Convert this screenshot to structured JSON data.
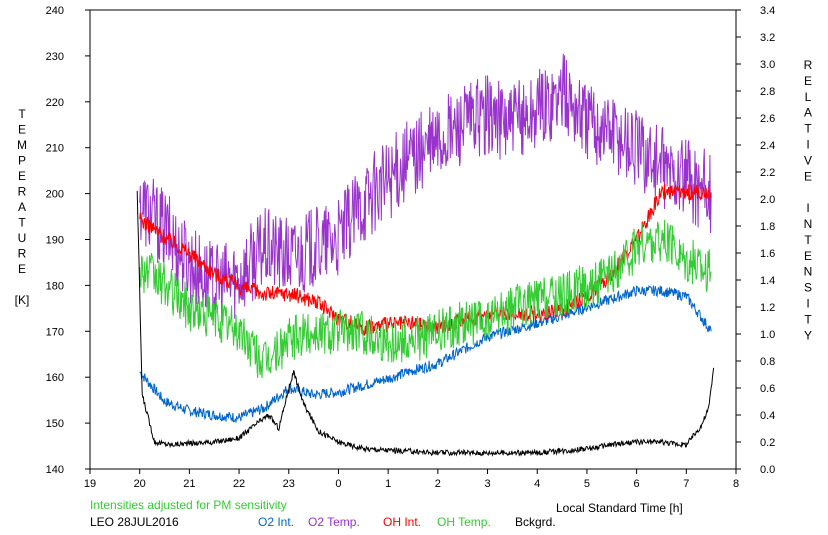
{
  "chart_data": {
    "type": "line",
    "xlabel": "Local Standard Time [h]",
    "ylabel_left": [
      "T",
      "E",
      "M",
      "P",
      "E",
      "R",
      "A",
      "T",
      "U",
      "R",
      "E",
      "",
      "[K]"
    ],
    "ylabel_right": [
      "R",
      "E",
      "L",
      "A",
      "T",
      "I",
      "V",
      "E",
      "",
      "I",
      "N",
      "T",
      "E",
      "N",
      "S",
      "I",
      "T",
      "Y"
    ],
    "x_tick_labels": [
      "19",
      "20",
      "21",
      "22",
      "23",
      "0",
      "1",
      "2",
      "3",
      "4",
      "5",
      "6",
      "7",
      "8"
    ],
    "y_left_ticks": [
      140,
      150,
      160,
      170,
      180,
      190,
      200,
      210,
      220,
      230,
      240
    ],
    "y_right_ticks": [
      "0.0",
      "0.2",
      "0.4",
      "0.6",
      "0.8",
      "1.0",
      "1.2",
      "1.4",
      "1.6",
      "1.8",
      "2.0",
      "2.2",
      "2.4",
      "2.6",
      "2.8",
      "3.0",
      "3.2",
      "3.4"
    ],
    "xlim": [
      19,
      32
    ],
    "ylim_left": [
      140,
      240
    ],
    "ylim_right": [
      0,
      3.4
    ],
    "note": "Intensities adjusted for PM sensitivity",
    "station": "LEO 28JUL2016",
    "series": [
      {
        "name": "O2 Int.",
        "axis": "right",
        "color": "#0066cc",
        "x": [
          20.0,
          20.5,
          21.0,
          21.5,
          22.0,
          22.5,
          23.0,
          23.5,
          24.0,
          24.5,
          25.0,
          25.5,
          26.0,
          26.5,
          27.0,
          27.5,
          28.0,
          28.5,
          29.0,
          29.5,
          30.0,
          30.5,
          31.0,
          31.5
        ],
        "y": [
          0.72,
          0.5,
          0.43,
          0.4,
          0.38,
          0.45,
          0.6,
          0.55,
          0.57,
          0.62,
          0.67,
          0.73,
          0.78,
          0.88,
          0.98,
          1.03,
          1.08,
          1.13,
          1.2,
          1.26,
          1.32,
          1.32,
          1.28,
          1.02
        ]
      },
      {
        "name": "O2 Temp.",
        "axis": "left",
        "color": "#9933cc",
        "x": [
          20.0,
          20.5,
          21.0,
          21.5,
          22.0,
          22.5,
          23.0,
          23.5,
          24.0,
          24.5,
          25.0,
          25.5,
          26.0,
          26.5,
          27.0,
          27.5,
          28.0,
          28.5,
          29.0,
          29.5,
          30.0,
          30.5,
          31.0,
          31.5
        ],
        "y": [
          198,
          192,
          185,
          180,
          182,
          188,
          186,
          188,
          190,
          198,
          203,
          208,
          211,
          215,
          217,
          215,
          218,
          222,
          216,
          214,
          210,
          206,
          203,
          200
        ]
      },
      {
        "name": "OH Int.",
        "axis": "right",
        "color": "#ff0000",
        "x": [
          20.0,
          20.5,
          21.0,
          21.5,
          22.0,
          22.5,
          23.0,
          23.5,
          24.0,
          24.5,
          25.0,
          25.5,
          26.0,
          26.5,
          27.0,
          27.5,
          28.0,
          28.5,
          29.0,
          29.5,
          30.0,
          30.5,
          31.0,
          31.5
        ],
        "y": [
          1.85,
          1.72,
          1.6,
          1.45,
          1.35,
          1.3,
          1.3,
          1.25,
          1.12,
          1.05,
          1.07,
          1.08,
          1.05,
          1.1,
          1.14,
          1.16,
          1.15,
          1.18,
          1.28,
          1.45,
          1.7,
          2.05,
          2.05,
          2.05
        ]
      },
      {
        "name": "OH Temp.",
        "axis": "left",
        "color": "#33cc33",
        "x": [
          20.0,
          20.5,
          21.0,
          21.5,
          22.0,
          22.5,
          23.0,
          23.5,
          24.0,
          24.5,
          25.0,
          25.5,
          26.0,
          26.5,
          27.0,
          27.5,
          28.0,
          28.5,
          29.0,
          29.5,
          30.0,
          30.5,
          31.0,
          31.5
        ],
        "y": [
          184,
          180,
          175,
          173,
          170,
          163,
          168,
          170,
          170,
          170,
          168,
          168,
          170,
          172,
          172,
          175,
          177,
          178,
          180,
          182,
          188,
          190,
          186,
          183
        ]
      },
      {
        "name": "Bckgrd.",
        "axis": "right",
        "color": "#000000",
        "x": [
          19.95,
          20.05,
          20.3,
          20.6,
          21.0,
          21.5,
          22.0,
          22.4,
          22.6,
          22.8,
          23.0,
          23.1,
          23.3,
          23.6,
          24.0,
          24.5,
          25.0,
          26.0,
          27.0,
          28.0,
          29.0,
          29.5,
          30.0,
          30.5,
          31.0,
          31.3,
          31.45,
          31.55
        ],
        "y": [
          2.06,
          0.55,
          0.2,
          0.18,
          0.19,
          0.2,
          0.23,
          0.35,
          0.4,
          0.3,
          0.6,
          0.72,
          0.48,
          0.28,
          0.2,
          0.15,
          0.14,
          0.12,
          0.12,
          0.12,
          0.15,
          0.18,
          0.2,
          0.2,
          0.18,
          0.32,
          0.45,
          0.75
        ]
      }
    ]
  }
}
